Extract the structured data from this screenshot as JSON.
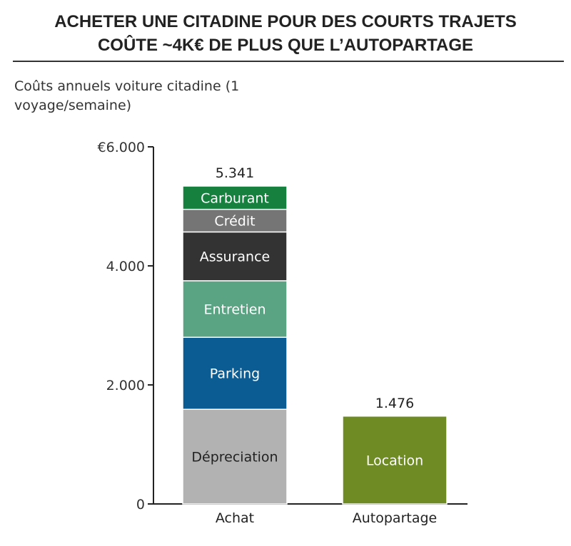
{
  "title_line1": "ACHETER UNE CITADINE POUR DES COURTS TRAJETS",
  "title_line2": "COÛTE ~4K€ DE PLUS QUE L’AUTOPARTAGE",
  "chart_data": {
    "type": "bar",
    "stacked": true,
    "subtitle": "Coûts annuels voiture citadine (1 voyage/semaine)",
    "categories": [
      "Achat",
      "Autopartage"
    ],
    "ylim": [
      0,
      6000
    ],
    "yticks": [
      {
        "value": 0,
        "label": "0"
      },
      {
        "value": 2000,
        "label": "2.000"
      },
      {
        "value": 4000,
        "label": "4.000"
      },
      {
        "value": 6000,
        "label": "€6.000"
      }
    ],
    "grid": false,
    "totals": [
      {
        "category": "Achat",
        "value": 5341,
        "label": "5.341"
      },
      {
        "category": "Autopartage",
        "value": 1476,
        "label": "1.476"
      }
    ],
    "segments": [
      {
        "category": "Achat",
        "name": "Dépreciation",
        "value": 1590,
        "color": "#b2b2b2",
        "text_color": "#222222"
      },
      {
        "category": "Achat",
        "name": "Parking",
        "value": 1210,
        "color": "#0c5c94",
        "text_color": "#ffffff"
      },
      {
        "category": "Achat",
        "name": "Entretien",
        "value": 950,
        "color": "#5aa383",
        "text_color": "#ffffff"
      },
      {
        "category": "Achat",
        "name": "Assurance",
        "value": 820,
        "color": "#333333",
        "text_color": "#ffffff"
      },
      {
        "category": "Achat",
        "name": "Crédit",
        "value": 380,
        "color": "#757575",
        "text_color": "#ffffff"
      },
      {
        "category": "Achat",
        "name": "Carburant",
        "value": 391,
        "color": "#16803f",
        "text_color": "#ffffff"
      },
      {
        "category": "Autopartage",
        "name": "Location",
        "value": 1476,
        "color": "#6e8b24",
        "text_color": "#ffffff"
      }
    ]
  }
}
